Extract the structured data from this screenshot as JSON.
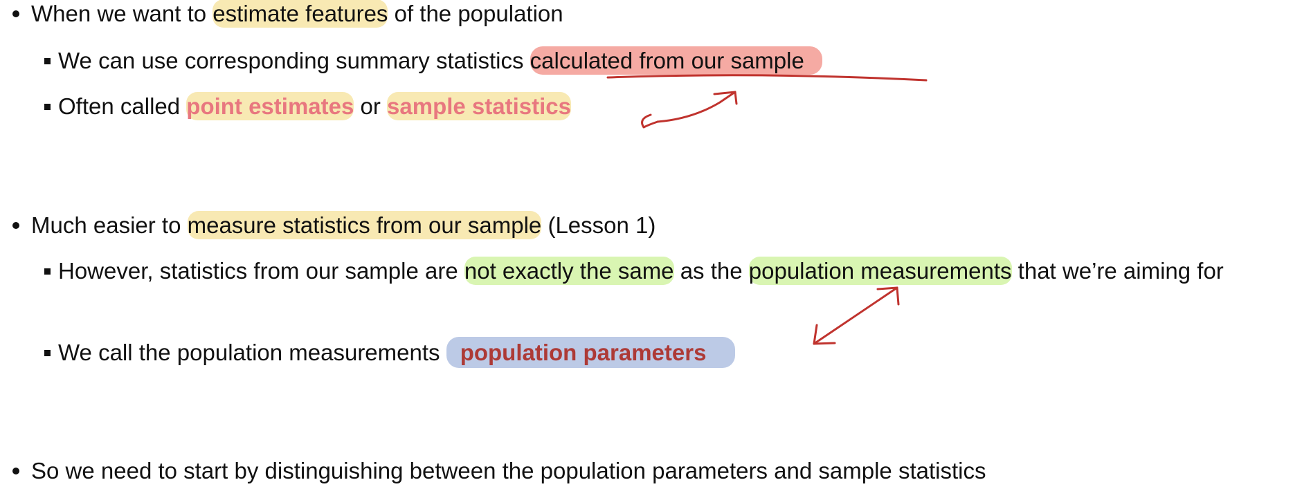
{
  "bullets": [
    {
      "parts": [
        "When we want to ",
        "estimate features",
        " of the population"
      ],
      "sub": [
        {
          "parts": [
            "We can use corresponding summary statistics ",
            "calculated from our sample"
          ]
        },
        {
          "parts": [
            "Often called ",
            "point estimates",
            " or ",
            "sample statistics"
          ]
        }
      ]
    },
    {
      "parts": [
        "Much easier to ",
        "measure statistics from our sample",
        " (Lesson 1)"
      ],
      "sub": [
        {
          "parts": [
            "However, statistics from our sample are ",
            "not exactly the same",
            " as the ",
            "population measurements",
            " that we’re aiming for"
          ]
        },
        {
          "parts": [
            "We call the population measurements ",
            "population parameters"
          ]
        }
      ]
    },
    {
      "parts": [
        "So we need to start by distinguishing between the population parameters and sample statistics"
      ],
      "sub": []
    }
  ]
}
